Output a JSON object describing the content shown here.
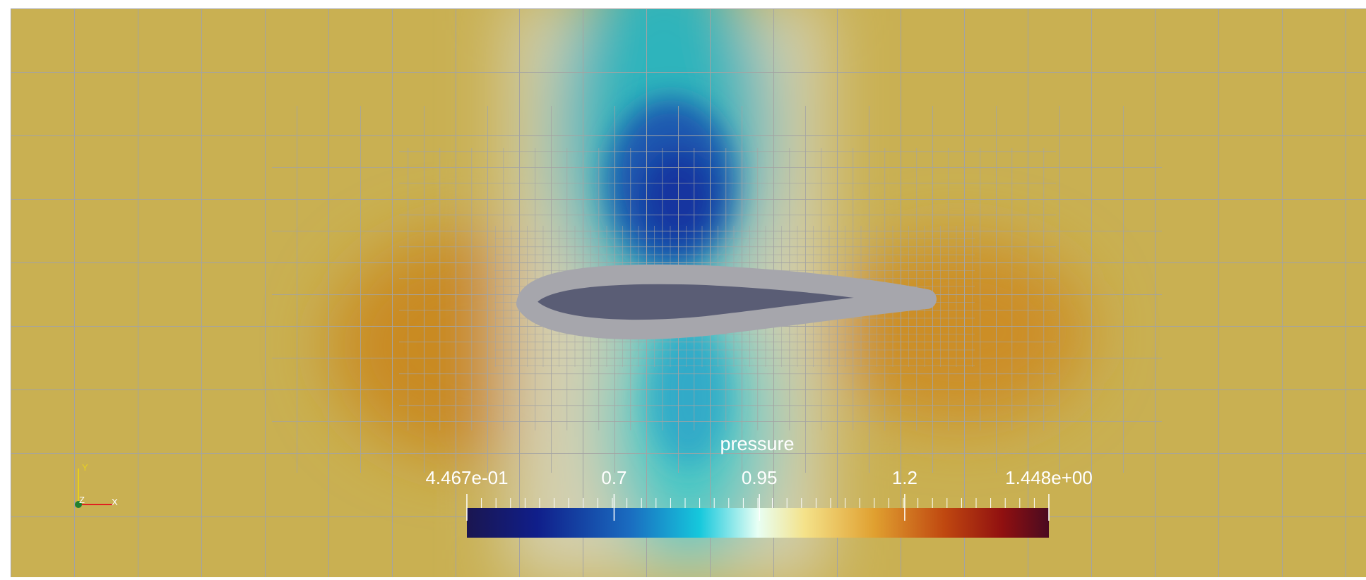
{
  "colorbar": {
    "title": "pressure",
    "range": [
      0.4467,
      1.448
    ],
    "ticks": [
      {
        "value": 0.4467,
        "label": "4.467e-01"
      },
      0.7,
      0.95,
      1.2,
      {
        "value": 1.448,
        "label": "1.448e+00"
      }
    ]
  },
  "axes_triad": {
    "x": "X",
    "y": "Y",
    "z": "Z"
  }
}
